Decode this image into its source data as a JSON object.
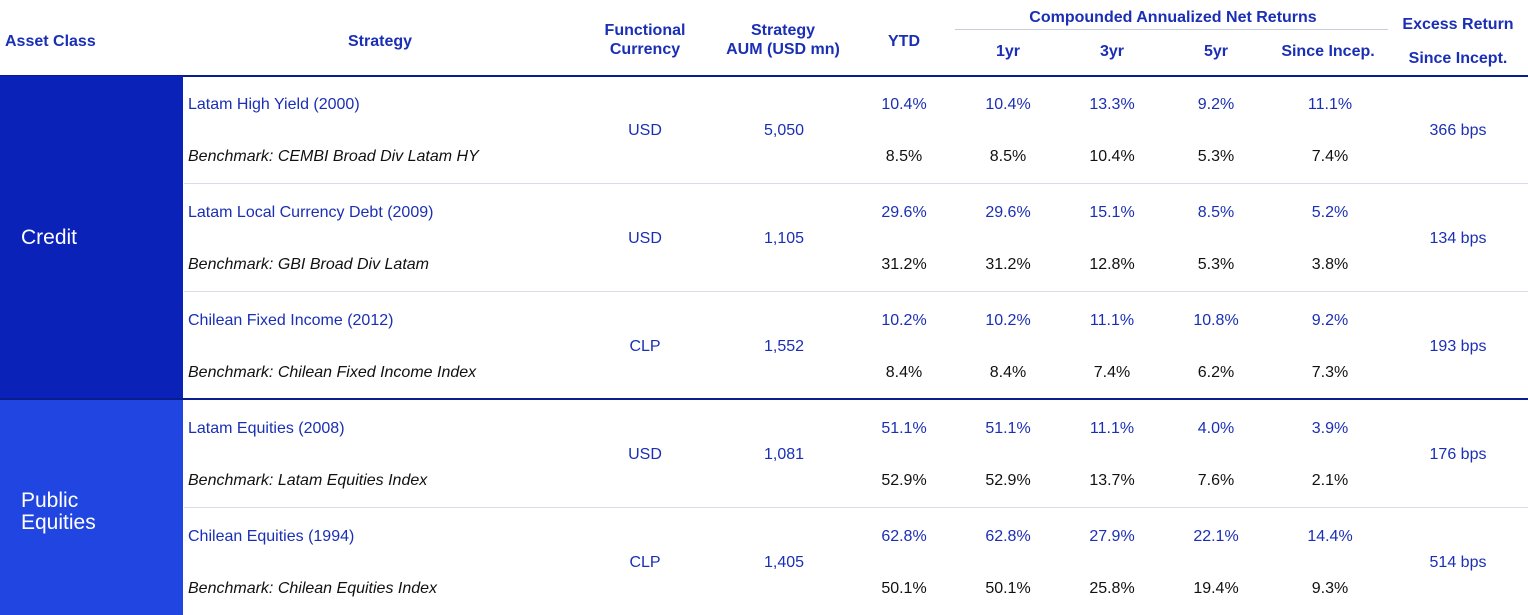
{
  "headers": {
    "asset_class": "Asset Class",
    "strategy": "Strategy",
    "functional_currency": [
      "Functional",
      "Currency"
    ],
    "strategy_aum": [
      "Strategy",
      "AUM (USD mn)"
    ],
    "ytd": "YTD",
    "compounded_group": "Compounded Annualized Net Returns",
    "one_yr": "1yr",
    "three_yr": "3yr",
    "five_yr": "5yr",
    "since_incep": "Since Incep.",
    "excess_return": [
      "Excess Return",
      "Since Incept."
    ]
  },
  "asset_classes": [
    {
      "name": "Credit"
    },
    {
      "name_lines": [
        "Public",
        "Equities"
      ]
    }
  ],
  "rows": [
    {
      "strategy": "Latam High Yield (2000)",
      "benchmark": "Benchmark: CEMBI Broad Div Latam HY",
      "currency": "USD",
      "aum": "5,050",
      "strat_returns": [
        "10.4%",
        "10.4%",
        "13.3%",
        "9.2%",
        "11.1%"
      ],
      "bench_returns": [
        "8.5%",
        "8.5%",
        "10.4%",
        "5.3%",
        "7.4%"
      ],
      "excess": "366 bps"
    },
    {
      "strategy": "Latam Local Currency Debt (2009)",
      "benchmark": "Benchmark: GBI Broad Div Latam",
      "currency": "USD",
      "aum": "1,105",
      "strat_returns": [
        "29.6%",
        "29.6%",
        "15.1%",
        "8.5%",
        "5.2%"
      ],
      "bench_returns": [
        "31.2%",
        "31.2%",
        "12.8%",
        "5.3%",
        "3.8%"
      ],
      "excess": "134 bps"
    },
    {
      "strategy": "Chilean Fixed Income (2012)",
      "benchmark": "Benchmark: Chilean Fixed Income Index",
      "currency": "CLP",
      "aum": "1,552",
      "strat_returns": [
        "10.2%",
        "10.2%",
        "11.1%",
        "10.8%",
        "9.2%"
      ],
      "bench_returns": [
        "8.4%",
        "8.4%",
        "7.4%",
        "6.2%",
        "7.3%"
      ],
      "excess": "193 bps"
    },
    {
      "strategy": "Latam Equities (2008)",
      "benchmark": "Benchmark: Latam Equities Index",
      "currency": "USD",
      "aum": "1,081",
      "strat_returns": [
        "51.1%",
        "51.1%",
        "11.1%",
        "4.0%",
        "3.9%"
      ],
      "bench_returns": [
        "52.9%",
        "52.9%",
        "13.7%",
        "7.6%",
        "2.1%"
      ],
      "excess": "176 bps"
    },
    {
      "strategy": "Chilean Equities (1994)",
      "benchmark": "Benchmark: Chilean Equities Index",
      "currency": "CLP",
      "aum": "1,405",
      "strat_returns": [
        "62.8%",
        "62.8%",
        "27.9%",
        "22.1%",
        "14.4%"
      ],
      "bench_returns": [
        "50.1%",
        "50.1%",
        "25.8%",
        "19.4%",
        "9.3%"
      ],
      "excess": "514 bps"
    }
  ]
}
